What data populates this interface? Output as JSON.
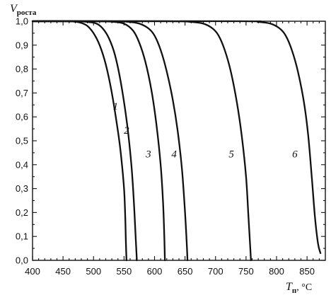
{
  "chart_data": {
    "type": "line",
    "title": "",
    "xlabel": {
      "main": "T",
      "sub": "п",
      "unit": ", °C"
    },
    "ylabel": {
      "main": "V",
      "sub": "роста"
    },
    "xlim": [
      400,
      880
    ],
    "ylim": [
      0,
      1.0
    ],
    "x_ticks": [
      {
        "value": 400,
        "label": "400"
      },
      {
        "value": 450,
        "label": "450"
      },
      {
        "value": 500,
        "label": "500"
      },
      {
        "value": 550,
        "label": "550"
      },
      {
        "value": 600,
        "label": "600"
      },
      {
        "value": 650,
        "label": "650"
      },
      {
        "value": 700,
        "label": "700"
      },
      {
        "value": 750,
        "label": "750"
      },
      {
        "value": 800,
        "label": "800"
      },
      {
        "value": 850,
        "label": "850"
      }
    ],
    "y_ticks": [
      {
        "value": 0.0,
        "label": "0,0"
      },
      {
        "value": 0.1,
        "label": "0,1"
      },
      {
        "value": 0.2,
        "label": "0,2"
      },
      {
        "value": 0.3,
        "label": "0,3"
      },
      {
        "value": 0.4,
        "label": "0,4"
      },
      {
        "value": 0.5,
        "label": "0,5"
      },
      {
        "value": 0.6,
        "label": "0,6"
      },
      {
        "value": 0.7,
        "label": "0,7"
      },
      {
        "value": 0.8,
        "label": "0,8"
      },
      {
        "value": 0.9,
        "label": "0,9"
      },
      {
        "value": 1.0,
        "label": "1,0"
      }
    ],
    "grid": false,
    "series": [
      {
        "label": "1",
        "label_at": [
          536,
          0.63
        ],
        "points": [
          [
            400,
            1.0
          ],
          [
            450,
            1.0
          ],
          [
            470,
            0.998
          ],
          [
            480,
            0.993
          ],
          [
            490,
            0.98
          ],
          [
            500,
            0.95
          ],
          [
            510,
            0.9
          ],
          [
            520,
            0.82
          ],
          [
            530,
            0.7
          ],
          [
            540,
            0.54
          ],
          [
            545,
            0.44
          ],
          [
            550,
            0.3
          ],
          [
            552,
            0.18
          ],
          [
            553,
            0.08
          ],
          [
            554,
            0.0
          ]
        ]
      },
      {
        "label": "2",
        "label_at": [
          554,
          0.53
        ],
        "points": [
          [
            400,
            1.0
          ],
          [
            470,
            1.0
          ],
          [
            490,
            0.997
          ],
          [
            505,
            0.99
          ],
          [
            515,
            0.97
          ],
          [
            525,
            0.93
          ],
          [
            535,
            0.86
          ],
          [
            545,
            0.74
          ],
          [
            555,
            0.57
          ],
          [
            562,
            0.4
          ],
          [
            566,
            0.25
          ],
          [
            569,
            0.1
          ],
          [
            571,
            0.0
          ]
        ]
      },
      {
        "label": "3",
        "label_at": [
          590,
          0.43
        ],
        "points": [
          [
            400,
            1.0
          ],
          [
            500,
            1.0
          ],
          [
            530,
            0.998
          ],
          [
            550,
            0.99
          ],
          [
            565,
            0.96
          ],
          [
            575,
            0.91
          ],
          [
            585,
            0.83
          ],
          [
            595,
            0.71
          ],
          [
            603,
            0.57
          ],
          [
            610,
            0.4
          ],
          [
            614,
            0.24
          ],
          [
            616,
            0.1
          ],
          [
            617,
            0.0
          ]
        ]
      },
      {
        "label": "4",
        "label_at": [
          632,
          0.43
        ],
        "points": [
          [
            400,
            1.0
          ],
          [
            520,
            1.0
          ],
          [
            555,
            0.998
          ],
          [
            575,
            0.99
          ],
          [
            590,
            0.97
          ],
          [
            600,
            0.94
          ],
          [
            610,
            0.88
          ],
          [
            620,
            0.79
          ],
          [
            630,
            0.67
          ],
          [
            638,
            0.54
          ],
          [
            645,
            0.38
          ],
          [
            650,
            0.2
          ],
          [
            653,
            0.06
          ],
          [
            654,
            0.0
          ]
        ]
      },
      {
        "label": "5",
        "label_at": [
          726,
          0.43
        ],
        "points": [
          [
            400,
            1.0
          ],
          [
            620,
            1.0
          ],
          [
            660,
            0.997
          ],
          [
            680,
            0.99
          ],
          [
            695,
            0.97
          ],
          [
            705,
            0.94
          ],
          [
            715,
            0.88
          ],
          [
            725,
            0.79
          ],
          [
            735,
            0.66
          ],
          [
            743,
            0.52
          ],
          [
            750,
            0.35
          ],
          [
            754,
            0.18
          ],
          [
            757,
            0.05
          ],
          [
            758,
            0.0
          ]
        ]
      },
      {
        "label": "6",
        "label_at": [
          830,
          0.43
        ],
        "points": [
          [
            400,
            1.0
          ],
          [
            740,
            1.0
          ],
          [
            770,
            0.997
          ],
          [
            790,
            0.99
          ],
          [
            805,
            0.97
          ],
          [
            815,
            0.94
          ],
          [
            825,
            0.88
          ],
          [
            835,
            0.79
          ],
          [
            845,
            0.66
          ],
          [
            852,
            0.52
          ],
          [
            858,
            0.34
          ],
          [
            863,
            0.18
          ],
          [
            868,
            0.07
          ],
          [
            872,
            0.03
          ]
        ]
      }
    ]
  }
}
